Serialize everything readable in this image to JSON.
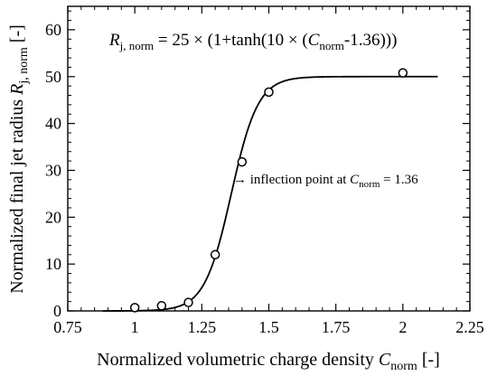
{
  "chart_data": {
    "type": "scatter",
    "xlabel_main": "Normalized volumetric charge density ",
    "xlabel_italic": "C",
    "xlabel_sub": "norm",
    "xlabel_tail": " [-]",
    "ylabel_main": "Normalized final jet radius ",
    "ylabel_italic": "R",
    "ylabel_sub": "j, norm",
    "ylabel_tail": " [-]",
    "xlim": [
      0.75,
      2.25
    ],
    "ylim": [
      0,
      65
    ],
    "x_ticks": [
      0.75,
      1,
      1.25,
      1.5,
      1.75,
      2,
      2.25
    ],
    "x_tick_labels": [
      "0.75",
      "1",
      "1.25",
      "1.5",
      "1.75",
      "2",
      "2.25"
    ],
    "y_ticks": [
      0,
      10,
      20,
      30,
      40,
      50,
      60
    ],
    "y_tick_labels": [
      "0",
      "10",
      "20",
      "30",
      "40",
      "50",
      "60"
    ],
    "x_minor_step": 0.05,
    "y_minor_step": 2,
    "grid": false,
    "series": [
      {
        "kind": "markers",
        "marker": "open-circle",
        "x": [
          1.0,
          1.1,
          1.2,
          1.3,
          1.4,
          1.5,
          2.0
        ],
        "y": [
          0.7,
          1.1,
          1.8,
          12.0,
          31.8,
          46.7,
          50.8
        ]
      },
      {
        "kind": "fit-line",
        "equation_params": {
          "amplitude": 25,
          "steepness": 10,
          "center": 1.36
        },
        "x_range": [
          0.88,
          2.13
        ]
      }
    ],
    "equation_label": {
      "italic_1": "R",
      "sub_1": "j, norm",
      "middle": " = 25 × (1+tanh(10 × (",
      "italic_2": "C",
      "sub_2": "norm",
      "tail": "-1.36)))"
    },
    "annotation": {
      "arrow": "→",
      "text": " inflection point at ",
      "italic": "C",
      "sub": "norm",
      "tail": " = 1.36"
    },
    "line_color": "#000000",
    "marker_color": "#000000"
  }
}
